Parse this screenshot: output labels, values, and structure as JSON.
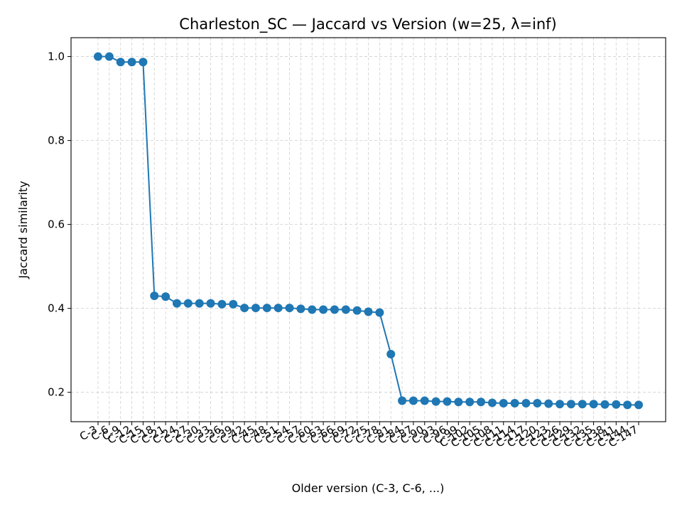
{
  "chart_data": {
    "type": "line",
    "title": "Charleston_SC — Jaccard vs Version (w=25, λ=inf)",
    "xlabel": "Older version (C-3, C-6, ...)",
    "ylabel": "Jaccard similarity",
    "ylim": [
      0.13,
      1.045
    ],
    "yticks": [
      0.2,
      0.4,
      0.6,
      0.8,
      1.0
    ],
    "grid": true,
    "color": "#1f77b4",
    "categories": [
      "C-3",
      "C-6",
      "C-9",
      "C-12",
      "C-15",
      "C-18",
      "C-21",
      "C-24",
      "C-27",
      "C-30",
      "C-33",
      "C-36",
      "C-39",
      "C-42",
      "C-45",
      "C-48",
      "C-51",
      "C-54",
      "C-57",
      "C-60",
      "C-63",
      "C-66",
      "C-69",
      "C-72",
      "C-75",
      "C-78",
      "C-81",
      "C-84",
      "C-87",
      "C-90",
      "C-93",
      "C-96",
      "C-99",
      "C-102",
      "C-105",
      "C-108",
      "C-111",
      "C-114",
      "C-117",
      "C-120",
      "C-123",
      "C-126",
      "C-129",
      "C-132",
      "C-135",
      "C-138",
      "C-141",
      "C-144",
      "C-147"
    ],
    "values": [
      1.0,
      1.0,
      0.987,
      0.987,
      0.987,
      0.43,
      0.428,
      0.412,
      0.412,
      0.412,
      0.412,
      0.41,
      0.41,
      0.401,
      0.401,
      0.401,
      0.401,
      0.401,
      0.399,
      0.397,
      0.397,
      0.397,
      0.397,
      0.395,
      0.392,
      0.39,
      0.291,
      0.18,
      0.18,
      0.18,
      0.178,
      0.178,
      0.177,
      0.177,
      0.177,
      0.175,
      0.174,
      0.174,
      0.174,
      0.174,
      0.173,
      0.172,
      0.172,
      0.172,
      0.172,
      0.171,
      0.171,
      0.17,
      0.17
    ]
  }
}
